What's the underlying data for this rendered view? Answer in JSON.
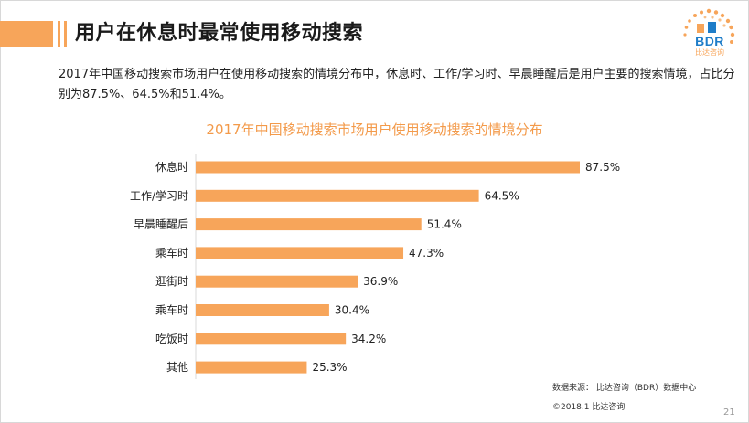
{
  "header": {
    "title": "用户在休息时最常使用移动搜索"
  },
  "logo": {
    "text": "BDR",
    "subtitle": "比达咨询"
  },
  "description": {
    "text": "2017年中国移动搜索市场用户在使用移动搜索的情境分布中，休息时、工作/学习时、早晨睡醒后是用户主要的搜索情境，占比分别为87.5%、64.5%和51.4%。"
  },
  "colors": {
    "accent": "#f7a55a",
    "title_orange": "#f39a4a",
    "logo_blue": "#1f7dc8"
  },
  "chart_data": {
    "type": "bar",
    "orientation": "horizontal",
    "title": "2017年中国移动搜索市场用户使用移动搜索的情境分布",
    "categories": [
      "休息时",
      "工作/学习时",
      "早晨睡醒后",
      "乘车时",
      "逛街时",
      "乘车时",
      "吃饭时",
      "其他"
    ],
    "values": [
      87.5,
      64.5,
      51.4,
      47.3,
      36.9,
      30.4,
      34.2,
      25.3
    ],
    "value_labels": [
      "87.5%",
      "64.5%",
      "51.4%",
      "47.3%",
      "36.9%",
      "30.4%",
      "34.2%",
      "25.3%"
    ],
    "unit": "%",
    "xlim": [
      0,
      100
    ],
    "grid": false,
    "legend": "none",
    "bar_color": "#f7a55a"
  },
  "footer": {
    "source": "数据来源：  比达咨询（BDR）数据中心",
    "copyright": "©2018.1    比达咨询",
    "page_number": "21"
  }
}
